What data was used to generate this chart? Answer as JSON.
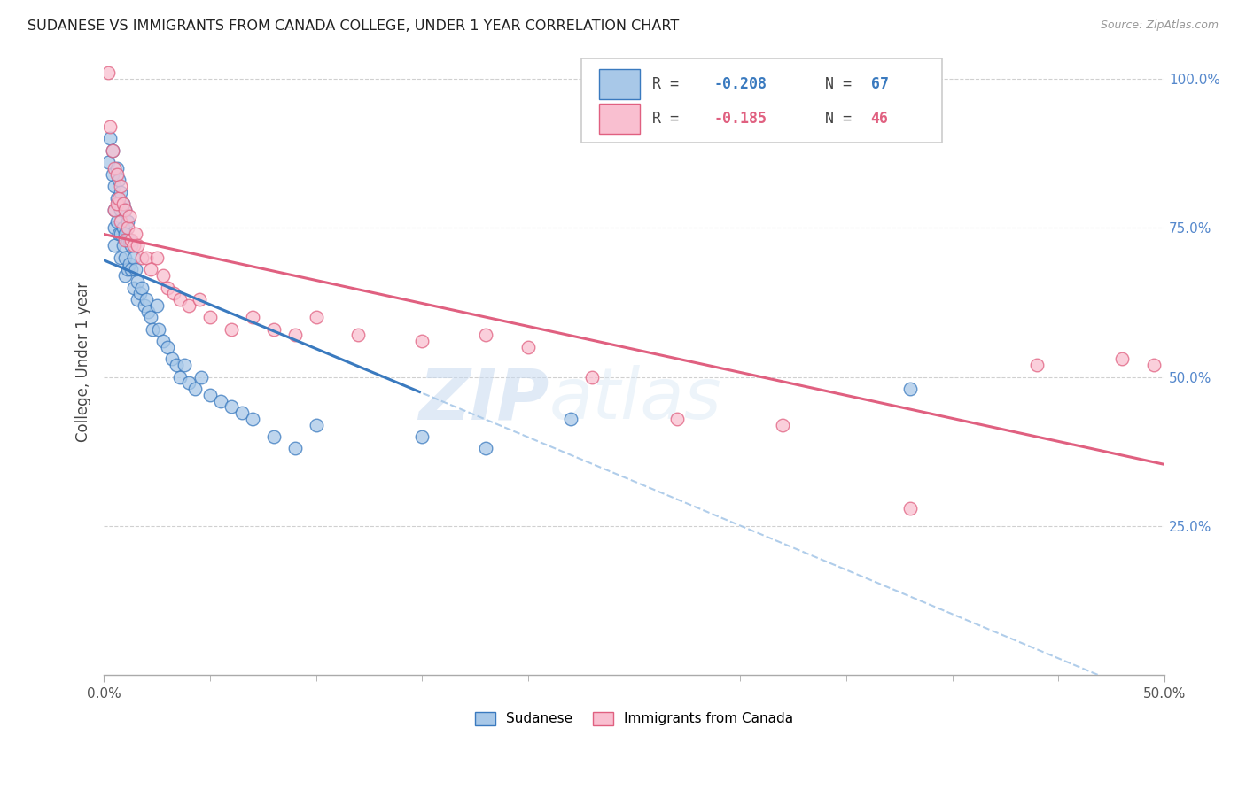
{
  "title": "SUDANESE VS IMMIGRANTS FROM CANADA COLLEGE, UNDER 1 YEAR CORRELATION CHART",
  "source": "Source: ZipAtlas.com",
  "ylabel": "College, Under 1 year",
  "legend_label1": "Sudanese",
  "legend_label2": "Immigrants from Canada",
  "R1": -0.208,
  "N1": 67,
  "R2": -0.185,
  "N2": 46,
  "color_blue": "#a8c8e8",
  "color_pink": "#f9bfd0",
  "line_color_blue": "#3a7abf",
  "line_color_pink": "#e06080",
  "xmin": 0.0,
  "xmax": 0.5,
  "ymin": 0.0,
  "ymax": 1.05,
  "xtick_positions": [
    0.0,
    0.5
  ],
  "xtick_labels": [
    "0.0%",
    "50.0%"
  ],
  "ytick_positions": [
    0.25,
    0.5,
    0.75,
    1.0
  ],
  "ytick_labels": [
    "25.0%",
    "50.0%",
    "75.0%",
    "100.0%"
  ],
  "blue_x": [
    0.002,
    0.003,
    0.004,
    0.004,
    0.005,
    0.005,
    0.005,
    0.005,
    0.006,
    0.006,
    0.006,
    0.007,
    0.007,
    0.007,
    0.008,
    0.008,
    0.008,
    0.008,
    0.009,
    0.009,
    0.009,
    0.01,
    0.01,
    0.01,
    0.01,
    0.011,
    0.011,
    0.011,
    0.012,
    0.012,
    0.013,
    0.013,
    0.014,
    0.014,
    0.015,
    0.016,
    0.016,
    0.017,
    0.018,
    0.019,
    0.02,
    0.021,
    0.022,
    0.023,
    0.025,
    0.026,
    0.028,
    0.03,
    0.032,
    0.034,
    0.036,
    0.038,
    0.04,
    0.043,
    0.046,
    0.05,
    0.055,
    0.06,
    0.065,
    0.07,
    0.08,
    0.09,
    0.1,
    0.15,
    0.18,
    0.22,
    0.38
  ],
  "blue_y": [
    0.86,
    0.9,
    0.88,
    0.84,
    0.82,
    0.78,
    0.75,
    0.72,
    0.85,
    0.8,
    0.76,
    0.83,
    0.79,
    0.74,
    0.81,
    0.78,
    0.74,
    0.7,
    0.79,
    0.75,
    0.72,
    0.78,
    0.74,
    0.7,
    0.67,
    0.76,
    0.73,
    0.68,
    0.73,
    0.69,
    0.72,
    0.68,
    0.7,
    0.65,
    0.68,
    0.66,
    0.63,
    0.64,
    0.65,
    0.62,
    0.63,
    0.61,
    0.6,
    0.58,
    0.62,
    0.58,
    0.56,
    0.55,
    0.53,
    0.52,
    0.5,
    0.52,
    0.49,
    0.48,
    0.5,
    0.47,
    0.46,
    0.45,
    0.44,
    0.43,
    0.4,
    0.38,
    0.42,
    0.4,
    0.38,
    0.43,
    0.48
  ],
  "pink_x": [
    0.002,
    0.003,
    0.004,
    0.005,
    0.005,
    0.006,
    0.006,
    0.007,
    0.008,
    0.008,
    0.009,
    0.01,
    0.01,
    0.011,
    0.012,
    0.013,
    0.014,
    0.015,
    0.016,
    0.018,
    0.02,
    0.022,
    0.025,
    0.028,
    0.03,
    0.033,
    0.036,
    0.04,
    0.045,
    0.05,
    0.06,
    0.07,
    0.08,
    0.09,
    0.1,
    0.12,
    0.15,
    0.18,
    0.2,
    0.23,
    0.27,
    0.32,
    0.38,
    0.44,
    0.48,
    0.495
  ],
  "pink_y": [
    1.01,
    0.92,
    0.88,
    0.85,
    0.78,
    0.84,
    0.79,
    0.8,
    0.82,
    0.76,
    0.79,
    0.78,
    0.73,
    0.75,
    0.77,
    0.73,
    0.72,
    0.74,
    0.72,
    0.7,
    0.7,
    0.68,
    0.7,
    0.67,
    0.65,
    0.64,
    0.63,
    0.62,
    0.63,
    0.6,
    0.58,
    0.6,
    0.58,
    0.57,
    0.6,
    0.57,
    0.56,
    0.57,
    0.55,
    0.5,
    0.43,
    0.42,
    0.28,
    0.52,
    0.53,
    0.52
  ],
  "watermark_zip": "ZIP",
  "watermark_atlas": "atlas",
  "background_color": "#ffffff",
  "grid_color": "#d0d0d0"
}
